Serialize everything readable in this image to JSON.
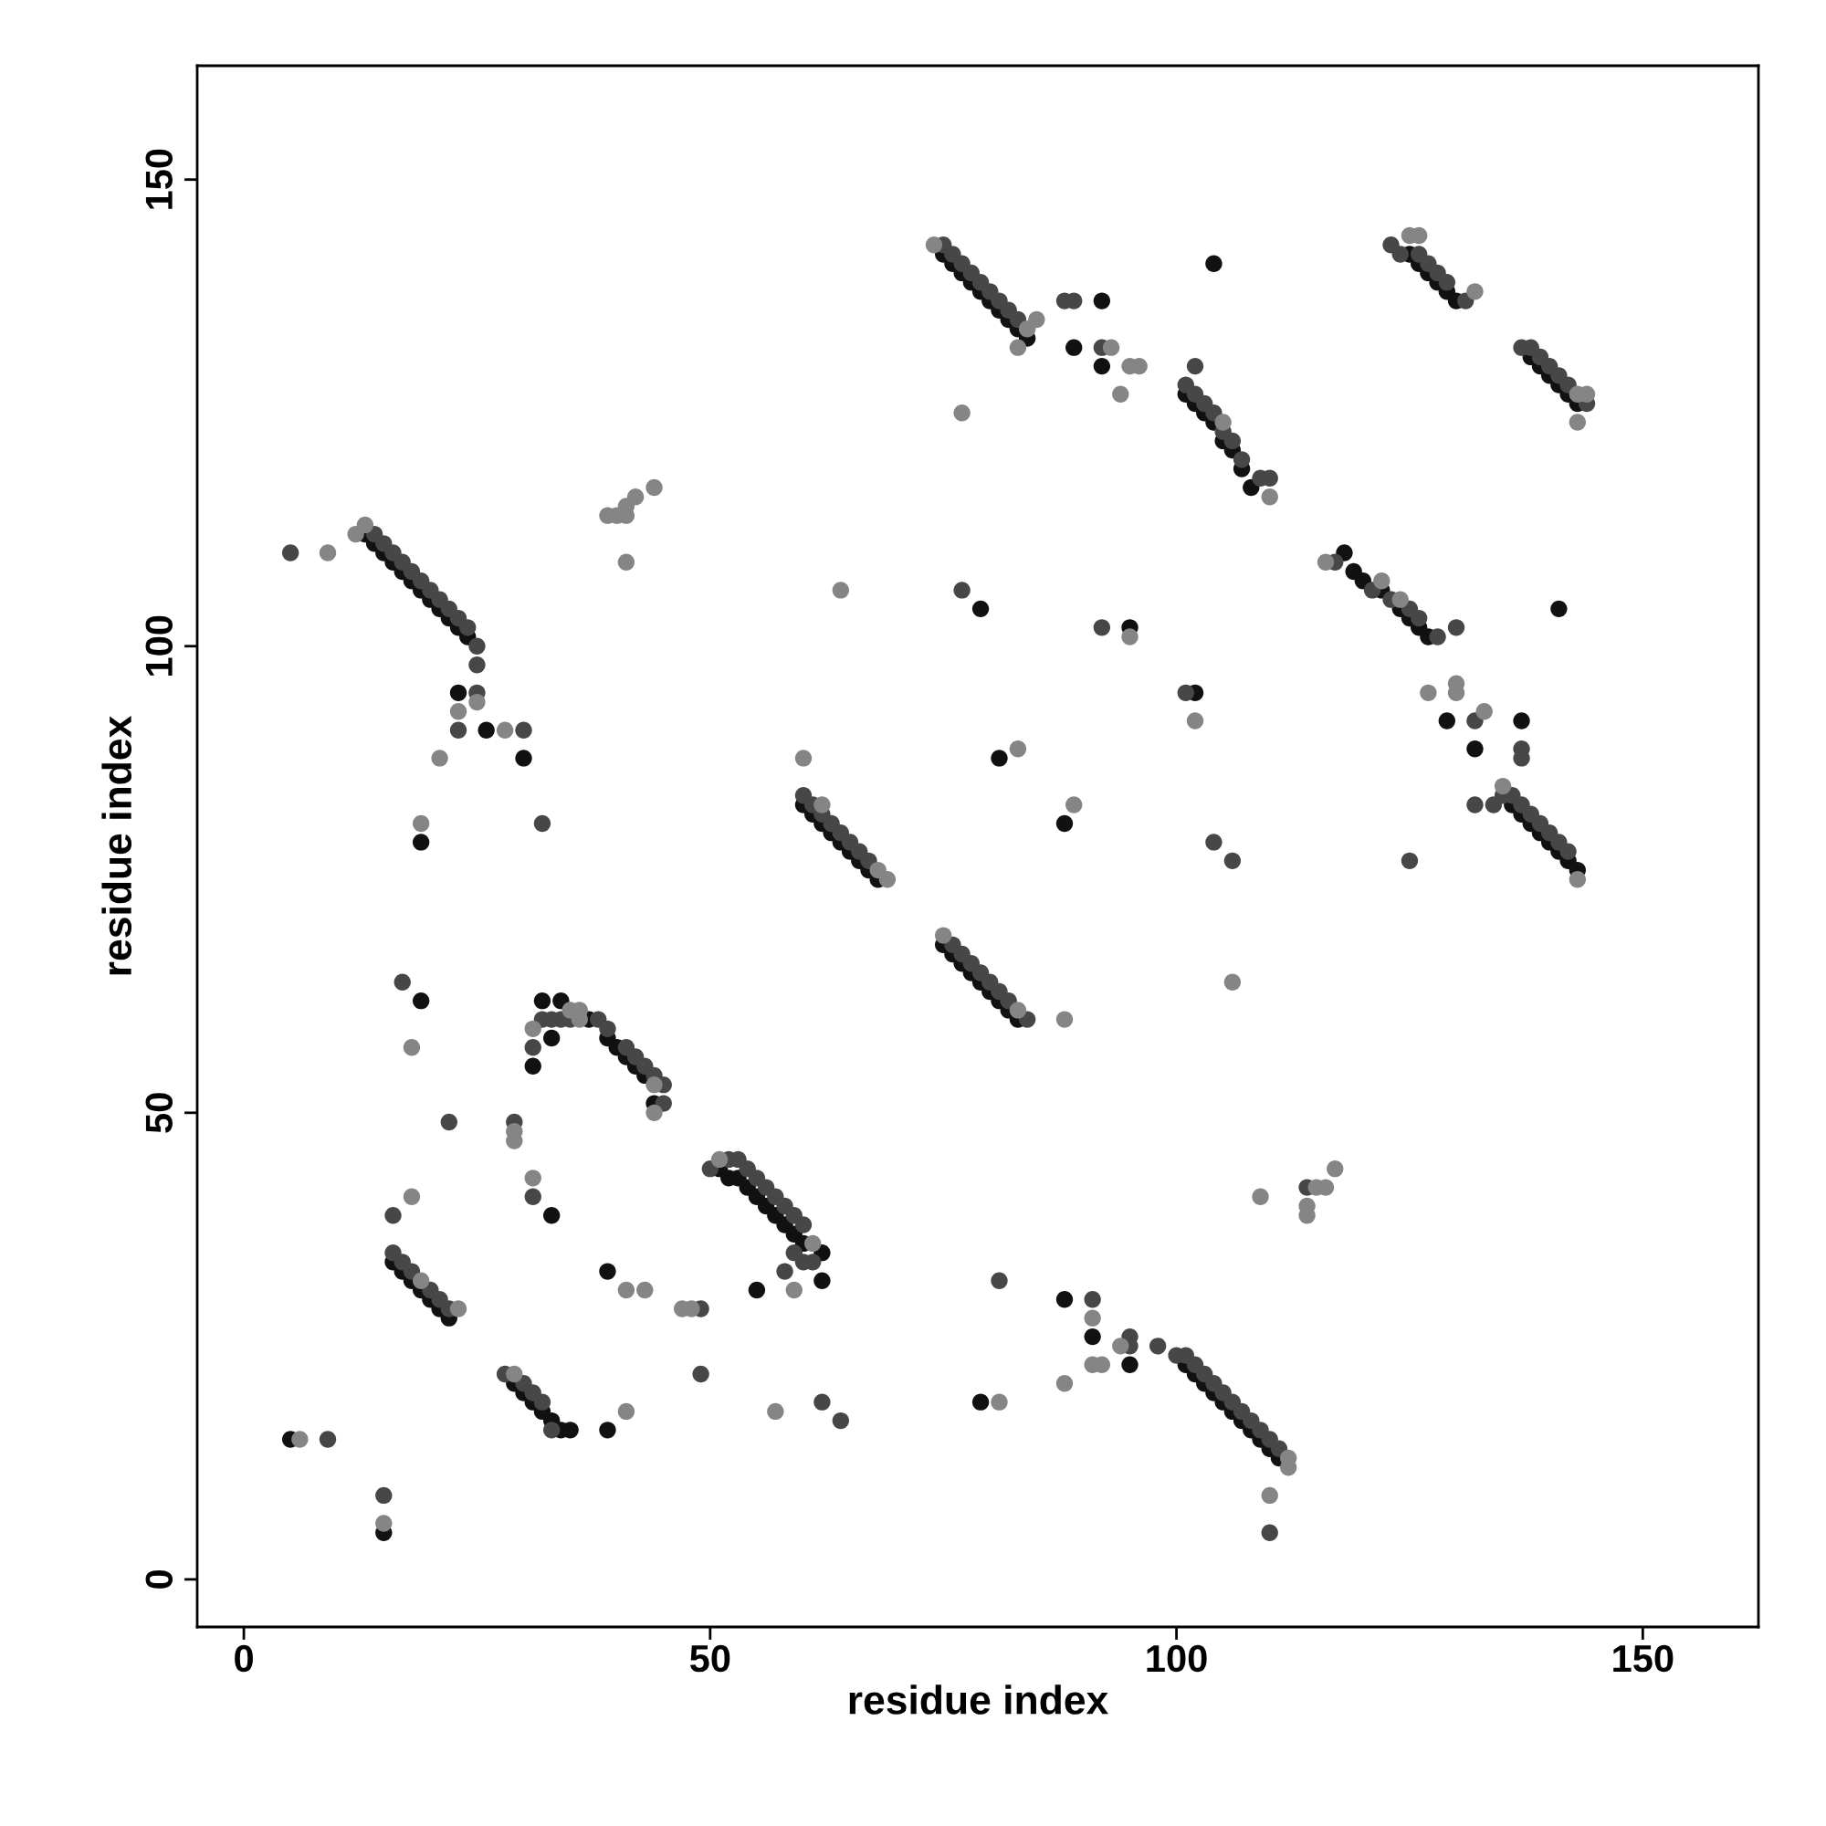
{
  "chart_data": {
    "type": "scatter",
    "xlabel": "residue index",
    "ylabel": "residue index",
    "xlim": [
      -5,
      162.4
    ],
    "ylim": [
      -5.1,
      162.2
    ],
    "xticks": [
      0,
      50,
      100,
      150
    ],
    "yticks": [
      0,
      50,
      100,
      150
    ],
    "marker": "circle",
    "grid": false,
    "series": [
      {
        "color": "#111111",
        "x": [
          13,
          14,
          15,
          16,
          17,
          18,
          19,
          20,
          21,
          22,
          23,
          24,
          23,
          26,
          30,
          19,
          60,
          61,
          62,
          63,
          64,
          65,
          66,
          67,
          68,
          75,
          76,
          77,
          78,
          79,
          80,
          81,
          82,
          83,
          75,
          76,
          77,
          78,
          79,
          80,
          81,
          82,
          83,
          84,
          92,
          89,
          92,
          104,
          79,
          95,
          81,
          88,
          101,
          102,
          103,
          104,
          105,
          106,
          107,
          108,
          125,
          126,
          127,
          128,
          129,
          130,
          138,
          139,
          140,
          141,
          142,
          143,
          118,
          119,
          120,
          122,
          124,
          125,
          126,
          127,
          141,
          136,
          137,
          138,
          139,
          140,
          141,
          142,
          143,
          129,
          132,
          137,
          102,
          16,
          17,
          18,
          19,
          20,
          21,
          22,
          19,
          29,
          30,
          31,
          32,
          33,
          34,
          35,
          5,
          15,
          39,
          39,
          33,
          31,
          32,
          33,
          34,
          37,
          39,
          40,
          41,
          42,
          43,
          44,
          51,
          52,
          53,
          54,
          55,
          56,
          57,
          58,
          59,
          60,
          62,
          62,
          55,
          101,
          102,
          103,
          104,
          105,
          106,
          107,
          108,
          109,
          110,
          111,
          88,
          91,
          95,
          79
        ],
        "values": [
          112,
          111,
          110,
          109,
          108,
          107,
          106,
          105,
          104,
          103,
          102,
          101,
          95,
          91,
          88,
          79,
          83,
          82,
          81,
          80,
          79,
          78,
          77,
          76,
          75,
          68,
          67,
          66,
          65,
          64,
          63,
          62,
          61,
          60,
          142,
          141,
          140,
          139,
          138,
          137,
          136,
          135,
          134,
          133,
          137,
          132,
          130,
          141,
          104,
          102,
          88,
          81,
          127,
          126,
          125,
          124,
          122,
          121,
          119,
          117,
          142,
          141,
          140,
          139,
          138,
          137,
          131,
          130,
          129,
          128,
          127,
          126,
          110,
          108,
          107,
          106,
          104,
          103,
          102,
          101,
          104,
          83,
          82,
          81,
          80,
          79,
          78,
          77,
          76,
          92,
          89,
          92,
          95,
          34,
          33,
          32,
          31,
          30,
          29,
          28,
          62,
          21,
          20,
          19,
          18,
          17,
          16,
          16,
          15,
          5,
          16,
          33,
          39,
          55,
          62,
          58,
          62,
          60,
          58,
          57,
          56,
          55,
          54,
          51,
          44,
          43,
          43,
          42,
          41,
          40,
          39,
          38,
          37,
          36,
          35,
          32,
          31,
          23,
          22,
          21,
          20,
          19,
          18,
          17,
          16,
          15,
          14,
          13,
          30,
          26,
          23,
          19
        ]
      },
      {
        "color": "#474747",
        "x": [
          14,
          15,
          16,
          17,
          18,
          19,
          20,
          21,
          22,
          23,
          24,
          25,
          5,
          25,
          23,
          25,
          30,
          32,
          61,
          62,
          63,
          64,
          65,
          66,
          67,
          60,
          76,
          77,
          78,
          79,
          80,
          81,
          82,
          84,
          75,
          76,
          77,
          78,
          79,
          80,
          81,
          82,
          83,
          88,
          89,
          92,
          77,
          92,
          101,
          102,
          103,
          104,
          105,
          106,
          107,
          109,
          110,
          102,
          123,
          124,
          126,
          127,
          128,
          129,
          131,
          137,
          138,
          139,
          140,
          141,
          142,
          144,
          117,
          121,
          123,
          125,
          126,
          128,
          130,
          135,
          136,
          137,
          138,
          139,
          140,
          141,
          142,
          132,
          137,
          137,
          132,
          134,
          125,
          101,
          104,
          106,
          16,
          17,
          18,
          20,
          21,
          22,
          16,
          17,
          22,
          28,
          30,
          31,
          32,
          33,
          9,
          15,
          49,
          49,
          29,
          31,
          31,
          32,
          33,
          34,
          35,
          38,
          39,
          41,
          42,
          43,
          44,
          45,
          45,
          50,
          52,
          53,
          54,
          55,
          56,
          57,
          58,
          59,
          60,
          59,
          60,
          61,
          58,
          62,
          64,
          98,
          100,
          101,
          102,
          103,
          104,
          105,
          106,
          107,
          108,
          109,
          110,
          111,
          110,
          91,
          95,
          95,
          81,
          114
        ],
        "values": [
          112,
          111,
          110,
          109,
          108,
          107,
          106,
          105,
          104,
          103,
          102,
          100,
          110,
          98,
          91,
          95,
          91,
          81,
          83,
          82,
          81,
          80,
          79,
          78,
          77,
          84,
          68,
          67,
          66,
          65,
          64,
          63,
          62,
          60,
          143,
          142,
          141,
          140,
          139,
          138,
          137,
          136,
          135,
          137,
          137,
          132,
          106,
          102,
          128,
          127,
          126,
          125,
          123,
          122,
          120,
          118,
          118,
          130,
          143,
          142,
          142,
          141,
          140,
          139,
          137,
          132,
          132,
          131,
          130,
          129,
          128,
          126,
          109,
          106,
          105,
          104,
          103,
          101,
          102,
          84,
          84,
          83,
          82,
          81,
          80,
          79,
          78,
          92,
          89,
          88,
          83,
          83,
          77,
          95,
          79,
          77,
          35,
          34,
          33,
          31,
          30,
          29,
          39,
          64,
          49,
          22,
          21,
          20,
          19,
          16,
          15,
          9,
          29,
          22,
          49,
          41,
          57,
          60,
          60,
          60,
          60,
          60,
          59,
          57,
          56,
          55,
          54,
          53,
          51,
          44,
          45,
          45,
          44,
          43,
          42,
          41,
          40,
          39,
          38,
          35,
          34,
          34,
          33,
          19,
          17,
          25,
          24,
          24,
          23,
          22,
          21,
          20,
          19,
          18,
          17,
          16,
          15,
          14,
          5,
          30,
          25,
          26,
          32,
          42
        ]
      },
      {
        "color": "#858585",
        "x": [
          12,
          9,
          13,
          23,
          25,
          28,
          21,
          19,
          39,
          40,
          41,
          41,
          42,
          44,
          41,
          68,
          69,
          60,
          64,
          62,
          75,
          83,
          88,
          74,
          85,
          84,
          83,
          93,
          95,
          96,
          94,
          77,
          95,
          83,
          89,
          110,
          105,
          125,
          126,
          132,
          143,
          143,
          144,
          116,
          122,
          124,
          135,
          143,
          127,
          130,
          130,
          133,
          102,
          106,
          23,
          18,
          18,
          19,
          29,
          6,
          15,
          41,
          41,
          43,
          47,
          48,
          29,
          29,
          31,
          31,
          35,
          36,
          44,
          44,
          36,
          51,
          59,
          61,
          57,
          112,
          112,
          110,
          91,
          91,
          92,
          94,
          88,
          81,
          109,
          114,
          114,
          115,
          116,
          117
        ],
        "values": [
          112,
          110,
          113,
          93,
          94,
          91,
          88,
          81,
          114,
          114,
          115,
          114,
          116,
          117,
          109,
          76,
          75,
          88,
          106,
          83,
          69,
          61,
          60,
          143,
          135,
          134,
          132,
          132,
          130,
          130,
          127,
          125,
          101,
          89,
          83,
          116,
          124,
          144,
          144,
          138,
          127,
          124,
          127,
          109,
          107,
          105,
          85,
          75,
          95,
          96,
          95,
          93,
          92,
          64,
          29,
          57,
          41,
          32,
          22,
          15,
          6,
          18,
          31,
          31,
          29,
          29,
          48,
          47,
          43,
          59,
          61,
          61,
          53,
          50,
          60,
          45,
          31,
          36,
          18,
          13,
          12,
          9,
          28,
          23,
          23,
          25,
          21,
          19,
          41,
          39,
          40,
          42,
          42,
          44
        ]
      }
    ]
  }
}
